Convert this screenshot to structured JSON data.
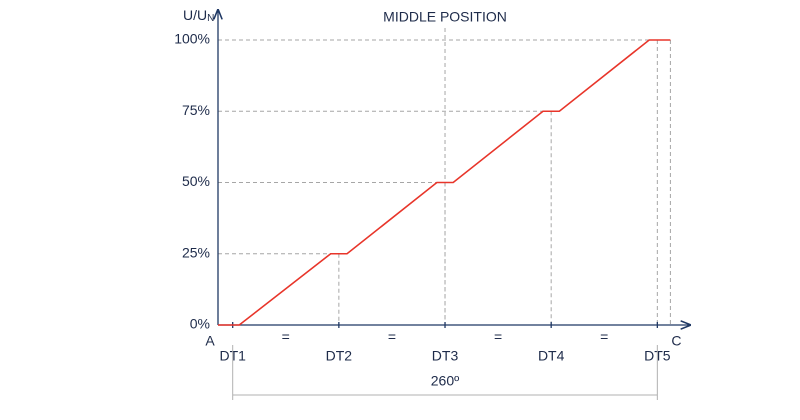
{
  "chart_data": {
    "type": "line",
    "ylabel_main": "U/U",
    "ylabel_sub": "N",
    "annotation": {
      "text": "MIDDLE POSITION",
      "x": 130
    },
    "axis_end_labels": [
      "A",
      "C"
    ],
    "spacing_labels": [
      "=",
      "=",
      "=",
      "="
    ],
    "span": {
      "value": 260,
      "label": "260º"
    },
    "x": [
      -9,
      4,
      60,
      70,
      125,
      135,
      190,
      200,
      255,
      268
    ],
    "series": [
      {
        "color": "#e8352a",
        "values": [
          0,
          0,
          25,
          25,
          50,
          50,
          75,
          75,
          100,
          100
        ]
      }
    ],
    "xlim": [
      -9,
      280
    ],
    "xticks": [
      {
        "value": 0,
        "label": "DT1"
      },
      {
        "value": 65,
        "label": "DT2"
      },
      {
        "value": 130,
        "label": "DT3"
      },
      {
        "value": 195,
        "label": "DT4"
      },
      {
        "value": 260,
        "label": "DT5"
      }
    ],
    "ylim": [
      0,
      100
    ],
    "yticks": [
      {
        "value": 0,
        "label": "0%"
      },
      {
        "value": 25,
        "label": "25%"
      },
      {
        "value": 50,
        "label": "50%"
      },
      {
        "value": 75,
        "label": "75%"
      },
      {
        "value": 100,
        "label": "100%"
      }
    ],
    "grid": true
  }
}
